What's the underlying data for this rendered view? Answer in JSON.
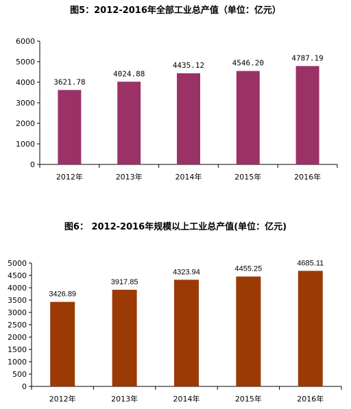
{
  "chart_data": [
    {
      "type": "bar",
      "title": "图5：2012-2016年全部工业总产值（单位：亿元）",
      "categories": [
        "2012年",
        "2013年",
        "2014年",
        "2015年",
        "2016年"
      ],
      "values": [
        3621.78,
        4024.88,
        4435.12,
        4546.2,
        4787.19
      ],
      "value_labels": [
        "3621.78",
        "4024.88",
        "4435.12",
        "4546.20",
        "4787.19"
      ],
      "ylim": [
        0,
        6000
      ],
      "yticks": [
        0,
        1000,
        2000,
        3000,
        4000,
        5000,
        6000
      ],
      "grid": false,
      "legend": "none",
      "bar_color": "#9B3266"
    },
    {
      "type": "bar",
      "title": "图6：  2012-2016年规模以上工业总产值(单位：亿元)",
      "categories": [
        "2012年",
        "2013年",
        "2014年",
        "2015年",
        "2016年"
      ],
      "values": [
        3426.89,
        3917.85,
        4323.94,
        4455.25,
        4685.11
      ],
      "value_labels": [
        "3426.89",
        "3917.85",
        "4323.94",
        "4455.25",
        "4685.11"
      ],
      "ylim": [
        0,
        5000
      ],
      "yticks": [
        0,
        500,
        1000,
        1500,
        2000,
        2500,
        3000,
        3500,
        4000,
        4500,
        5000
      ],
      "grid": false,
      "legend": "none",
      "bar_color": "#9B3A05"
    }
  ]
}
